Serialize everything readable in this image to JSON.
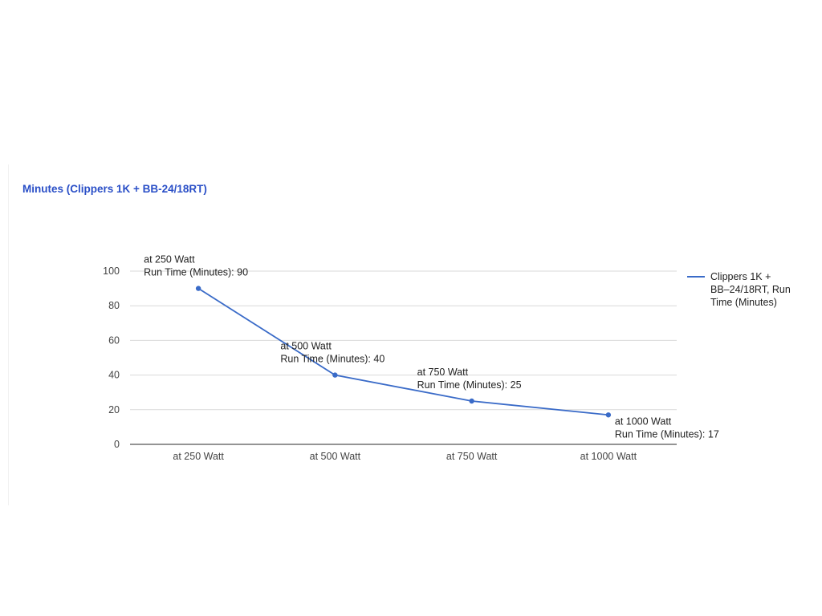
{
  "chart_data": {
    "type": "line",
    "title": "Minutes (Clippers 1K + BB-24/18RT)",
    "categories": [
      "at 250 Watt",
      "at 500 Watt",
      "at 750 Watt",
      "at 1000 Watt"
    ],
    "series": [
      {
        "name": "Clippers 1K + BB–24/18RT, Run Time (Minutes)",
        "values": [
          90,
          40,
          25,
          17
        ],
        "color": "#3a6bc8"
      }
    ],
    "data_labels": [
      [
        "at 250 Watt",
        "Run Time (Minutes): 90"
      ],
      [
        "at 500 Watt",
        "Run Time (Minutes): 40"
      ],
      [
        "at 750 Watt",
        "Run Time (Minutes): 25"
      ],
      [
        "at 1000 Watt",
        "Run Time (Minutes): 17"
      ]
    ],
    "yticks": [
      0,
      20,
      40,
      60,
      80,
      100
    ],
    "ylim": [
      0,
      100
    ],
    "xlabel": "",
    "ylabel": "",
    "grid": true,
    "legend_position": "right",
    "colors": {
      "title": "#2a4fc7",
      "grid": "#d9d9d9",
      "axis": "#555555"
    }
  }
}
